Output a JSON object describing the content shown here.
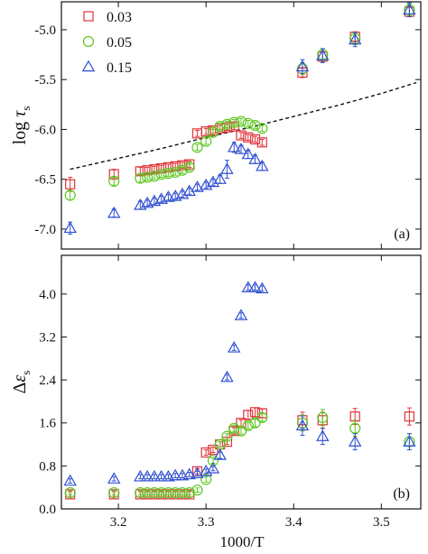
{
  "x_axis": {
    "label": "1000/T",
    "ticks": [
      3.2,
      3.3,
      3.4,
      3.5
    ],
    "tick_labels": [
      "3.2",
      "3.3",
      "3.4",
      "3.5"
    ]
  },
  "legend": [
    {
      "label": "0.03",
      "marker": "square",
      "color": "#e0343a"
    },
    {
      "label": "0.05",
      "marker": "circle",
      "color": "#5ac81e"
    },
    {
      "label": "0.15",
      "marker": "triangle",
      "color": "#3050d0"
    }
  ],
  "chart_data": [
    {
      "type": "scatter",
      "panel_label": "(a)",
      "ylabel_main": "log",
      "ylabel_symbol": "τ",
      "ylabel_sub": "s",
      "xlim": [
        3.135,
        3.545
      ],
      "ylim": [
        -7.2,
        -4.72
      ],
      "yticks": [
        -7.0,
        -6.5,
        -6.0,
        -5.5,
        -5.0
      ],
      "ytick_labels": [
        "-7.0",
        "-6.5",
        "-6.0",
        "-5.5",
        "-5.0"
      ],
      "series": [
        {
          "name": "0.03",
          "x": [
            3.145,
            3.195,
            3.225,
            3.233,
            3.241,
            3.249,
            3.257,
            3.265,
            3.273,
            3.281,
            3.29,
            3.3,
            3.308,
            3.316,
            3.324,
            3.332,
            3.34,
            3.348,
            3.356,
            3.364,
            3.41,
            3.433,
            3.47,
            3.532
          ],
          "y": [
            -6.55,
            -6.45,
            -6.42,
            -6.41,
            -6.4,
            -6.39,
            -6.38,
            -6.37,
            -6.36,
            -6.35,
            -6.04,
            -6.02,
            -6.01,
            -5.99,
            -5.98,
            -5.97,
            -6.06,
            -6.08,
            -6.1,
            -6.13,
            -5.43,
            -5.27,
            -5.07,
            -4.82
          ],
          "err": [
            0.07,
            0.05,
            0.04,
            0.03,
            0.03,
            0.03,
            0.03,
            0.03,
            0.03,
            0.03,
            0.03,
            0.03,
            0.03,
            0.03,
            0.03,
            0.03,
            0.03,
            0.03,
            0.03,
            0.03,
            0.05,
            0.05,
            0.05,
            0.05
          ]
        },
        {
          "name": "0.05",
          "x": [
            3.145,
            3.195,
            3.225,
            3.233,
            3.241,
            3.249,
            3.257,
            3.265,
            3.273,
            3.281,
            3.29,
            3.3,
            3.308,
            3.316,
            3.324,
            3.332,
            3.34,
            3.348,
            3.356,
            3.364,
            3.41,
            3.433,
            3.47,
            3.532
          ],
          "y": [
            -6.66,
            -6.52,
            -6.49,
            -6.48,
            -6.47,
            -6.45,
            -6.44,
            -6.43,
            -6.41,
            -6.38,
            -6.18,
            -6.12,
            -6.03,
            -5.97,
            -5.95,
            -5.93,
            -5.92,
            -5.94,
            -5.96,
            -5.99,
            -5.39,
            -5.25,
            -5.09,
            -4.8
          ],
          "err": [
            0.05,
            0.04,
            0.04,
            0.03,
            0.03,
            0.03,
            0.03,
            0.03,
            0.03,
            0.03,
            0.03,
            0.03,
            0.03,
            0.03,
            0.03,
            0.03,
            0.03,
            0.03,
            0.03,
            0.03,
            0.06,
            0.06,
            0.06,
            0.06
          ]
        },
        {
          "name": "0.15",
          "x": [
            3.145,
            3.195,
            3.225,
            3.233,
            3.241,
            3.249,
            3.257,
            3.265,
            3.273,
            3.281,
            3.29,
            3.3,
            3.308,
            3.316,
            3.324,
            3.332,
            3.34,
            3.348,
            3.356,
            3.364,
            3.41,
            3.433,
            3.47,
            3.532
          ],
          "y": [
            -6.99,
            -6.84,
            -6.76,
            -6.74,
            -6.72,
            -6.7,
            -6.68,
            -6.67,
            -6.65,
            -6.62,
            -6.58,
            -6.56,
            -6.53,
            -6.5,
            -6.4,
            -6.18,
            -6.2,
            -6.25,
            -6.3,
            -6.37,
            -5.37,
            -5.26,
            -5.1,
            -4.8
          ],
          "err": [
            0.06,
            0.04,
            0.04,
            0.03,
            0.03,
            0.03,
            0.03,
            0.03,
            0.03,
            0.03,
            0.03,
            0.03,
            0.03,
            0.04,
            0.09,
            0.05,
            0.04,
            0.04,
            0.04,
            0.04,
            0.07,
            0.07,
            0.07,
            0.07
          ]
        }
      ],
      "fit_line": {
        "style": "dashed",
        "x": [
          3.145,
          3.2,
          3.25,
          3.3,
          3.35,
          3.4,
          3.45,
          3.5,
          3.54
        ],
        "y": [
          -6.4,
          -6.29,
          -6.19,
          -6.08,
          -5.98,
          -5.87,
          -5.76,
          -5.64,
          -5.53
        ]
      }
    },
    {
      "type": "scatter",
      "panel_label": "(b)",
      "ylabel_main": "Δ",
      "ylabel_symbol": "ε",
      "ylabel_sub": "s",
      "xlim": [
        3.135,
        3.545
      ],
      "ylim": [
        0.0,
        4.72
      ],
      "yticks": [
        0.0,
        0.8,
        1.6,
        2.4,
        3.2,
        4.0
      ],
      "ytick_labels": [
        "0.0",
        "0.8",
        "1.6",
        "2.4",
        "3.2",
        "4.0"
      ],
      "series": [
        {
          "name": "0.03",
          "x": [
            3.145,
            3.195,
            3.225,
            3.233,
            3.241,
            3.249,
            3.257,
            3.265,
            3.273,
            3.281,
            3.29,
            3.3,
            3.308,
            3.316,
            3.324,
            3.332,
            3.34,
            3.348,
            3.356,
            3.364,
            3.41,
            3.433,
            3.47,
            3.532
          ],
          "y": [
            0.27,
            0.27,
            0.27,
            0.27,
            0.27,
            0.27,
            0.27,
            0.27,
            0.27,
            0.27,
            0.7,
            1.05,
            1.1,
            1.2,
            1.25,
            1.45,
            1.6,
            1.75,
            1.8,
            1.78,
            1.65,
            1.65,
            1.72,
            1.72
          ],
          "err": [
            0.05,
            0.05,
            0.05,
            0.05,
            0.05,
            0.05,
            0.05,
            0.05,
            0.05,
            0.05,
            0.05,
            0.05,
            0.05,
            0.05,
            0.05,
            0.06,
            0.06,
            0.08,
            0.08,
            0.08,
            0.15,
            0.15,
            0.15,
            0.16
          ]
        },
        {
          "name": "0.05",
          "x": [
            3.145,
            3.195,
            3.225,
            3.233,
            3.241,
            3.249,
            3.257,
            3.265,
            3.273,
            3.281,
            3.29,
            3.3,
            3.308,
            3.316,
            3.324,
            3.332,
            3.34,
            3.348,
            3.356,
            3.364,
            3.41,
            3.433,
            3.47,
            3.532
          ],
          "y": [
            0.3,
            0.3,
            0.3,
            0.3,
            0.3,
            0.3,
            0.3,
            0.3,
            0.3,
            0.3,
            0.35,
            0.55,
            0.9,
            1.2,
            1.35,
            1.5,
            1.45,
            1.55,
            1.6,
            1.7,
            1.6,
            1.7,
            1.5,
            1.25
          ],
          "err": [
            0.04,
            0.04,
            0.04,
            0.04,
            0.04,
            0.04,
            0.04,
            0.04,
            0.04,
            0.04,
            0.04,
            0.05,
            0.05,
            0.05,
            0.05,
            0.06,
            0.06,
            0.06,
            0.07,
            0.07,
            0.15,
            0.15,
            0.15,
            0.15
          ]
        },
        {
          "name": "0.15",
          "x": [
            3.145,
            3.195,
            3.225,
            3.233,
            3.241,
            3.249,
            3.257,
            3.265,
            3.273,
            3.281,
            3.29,
            3.3,
            3.308,
            3.316,
            3.324,
            3.332,
            3.34,
            3.348,
            3.356,
            3.364,
            3.41,
            3.433,
            3.47,
            3.532
          ],
          "y": [
            0.52,
            0.56,
            0.6,
            0.6,
            0.6,
            0.6,
            0.6,
            0.62,
            0.62,
            0.64,
            0.66,
            0.7,
            0.75,
            1.0,
            2.45,
            3.0,
            3.6,
            4.12,
            4.12,
            4.1,
            1.55,
            1.35,
            1.25,
            1.25
          ],
          "err": [
            0.04,
            0.04,
            0.04,
            0.04,
            0.04,
            0.04,
            0.04,
            0.04,
            0.04,
            0.04,
            0.04,
            0.04,
            0.04,
            0.06,
            0.05,
            0.05,
            0.05,
            0.05,
            0.05,
            0.05,
            0.18,
            0.15,
            0.15,
            0.15
          ]
        }
      ]
    }
  ]
}
